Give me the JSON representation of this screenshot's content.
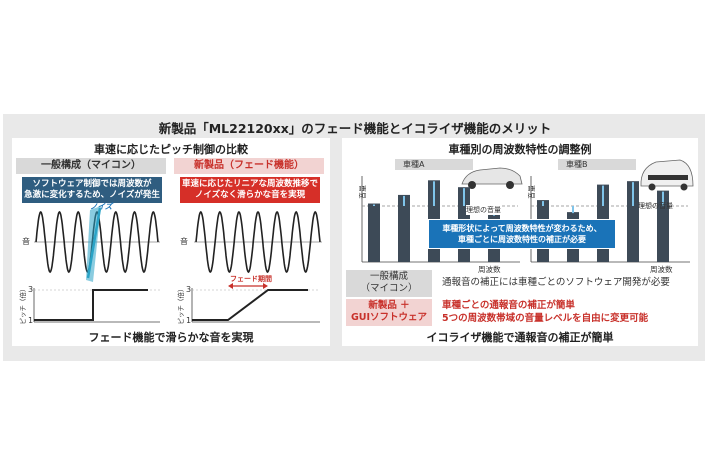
{
  "title": "新製品「ML22120xx」のフェード機能とイコライザ機能のメリット",
  "left": {
    "heading": "車速に応じたピッチ制御の比較",
    "conventional": {
      "header": "一般構成（マイコン）",
      "note_line1": "ソフトウェア制御では周波数が",
      "note_line2": "急激に変化するため、ノイズが発生",
      "noise_label": "ノイズ",
      "y_label": "音"
    },
    "new_product": {
      "header": "新製品（フェード機能）",
      "note_line1": "車速に応じたリニアな周波数推移で",
      "note_line2": "ノイズなく滑らかな音を実現",
      "y_label": "音",
      "fade_label": "フェード期間"
    },
    "pitch_axis_label": "ピッチ（倍）",
    "tick_top": "3",
    "tick_bottom": "1",
    "caption": "フェード機能で滑らかな音を実現"
  },
  "right": {
    "heading": "車種別の周波数特性の調整例",
    "vehicle_a": "車種A",
    "vehicle_b": "車種B",
    "y_axis_label": "音量",
    "ideal_label": "理想の音量",
    "x_axis_label": "周波数",
    "note_line1": "車種形状によって周波数特性が変わるため、",
    "note_line2": "車種ごとに周波数特性の補正が必要",
    "conventional_label_line1": "一般構成",
    "conventional_label_line2": "（マイコン）",
    "conventional_desc": "通報音の補正には車種ごとのソフトウェア開発が必要",
    "new_label_line1": "新製品 ＋",
    "new_label_line2": "GUIソフトウェア",
    "new_desc_line1": "車種ごとの通報音の補正が簡単",
    "new_desc_line2": "5つの周波数帯域の音量レベルを自由に変更可能",
    "caption": "イコライザ機能で通報音の補正が簡単"
  },
  "colors": {
    "accent_red": "#c8312b",
    "note_blue": "#1a73b8",
    "note_dark": "#2f5d80",
    "bar_dark": "#3d4a57",
    "wave_cyan": "#2aa3c6"
  },
  "chart_data": [
    {
      "type": "bar",
      "title": "車種A",
      "ylabel": "音量",
      "xlabel": "周波数",
      "values": [
        0.68,
        0.78,
        0.95,
        0.87,
        0.55
      ]
    },
    {
      "type": "bar",
      "title": "車種B",
      "ylabel": "音量",
      "xlabel": "周波数",
      "values": [
        0.72,
        0.58,
        0.9,
        0.94,
        0.83
      ]
    }
  ]
}
